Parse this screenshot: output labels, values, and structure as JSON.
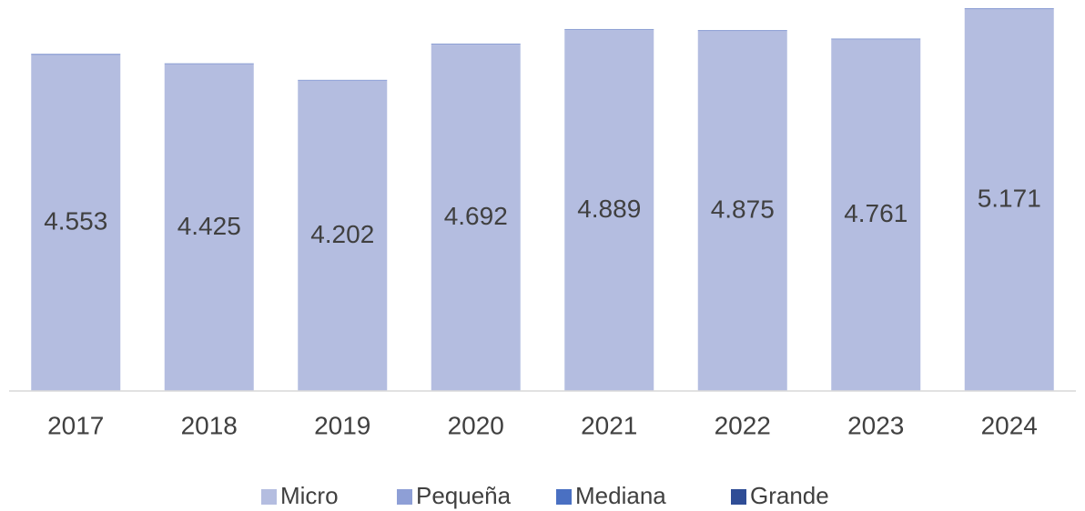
{
  "chart_data": {
    "type": "stacked_bar",
    "categories": [
      "2017",
      "2018",
      "2019",
      "2020",
      "2021",
      "2022",
      "2023",
      "2024"
    ],
    "series": [
      {
        "name": "Micro",
        "color": "#b4bde0",
        "values": [
          4553,
          4425,
          4202,
          4692,
          4889,
          4875,
          4761,
          5171
        ],
        "value_labels": [
          "4.553",
          "4.425",
          "4.202",
          "4.692",
          "4.889",
          "4.875",
          "4.761",
          "5.171"
        ]
      },
      {
        "name": "Pequeña",
        "color": "#8e9fd6",
        "values": [
          12,
          11,
          10,
          12,
          12,
          12,
          11,
          13
        ]
      },
      {
        "name": "Mediana",
        "color": "#4a70c2",
        "values": [
          2,
          2,
          2,
          2,
          2,
          2,
          2,
          2
        ]
      },
      {
        "name": "Grande",
        "color": "#2f4d96",
        "values": [
          1,
          1,
          1,
          1,
          1,
          1,
          1,
          1
        ]
      }
    ]
  }
}
